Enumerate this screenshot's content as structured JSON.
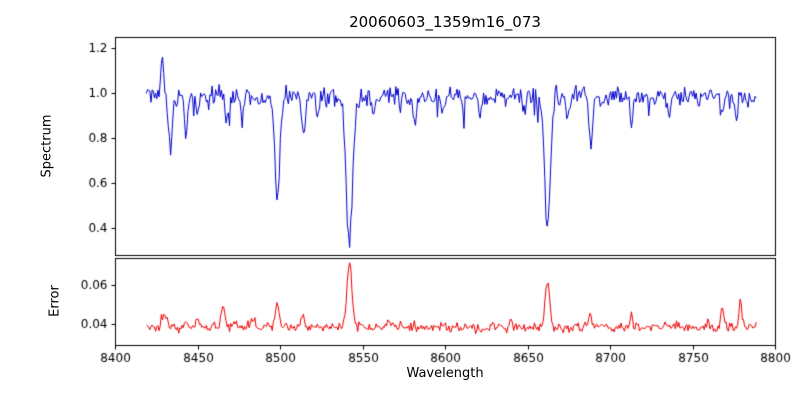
{
  "seed": 73,
  "figure": {
    "title": "20060603_1359m16_073",
    "xlabel": "Wavelength",
    "background": "#ffffff",
    "frame_color": "#000000",
    "text_color": "#000000",
    "grid": false,
    "legend": "none"
  },
  "chart_data": [
    {
      "id": "spectrum",
      "type": "line",
      "title": "20060603_1359m16_073",
      "ylabel": "Spectrum",
      "color": "#0000cd",
      "xlim": [
        8400,
        8800
      ],
      "ylim": [
        0.28,
        1.25
      ],
      "yticks": [
        {
          "v": 0.4,
          "label": "0.4"
        },
        {
          "v": 0.6,
          "label": "0.6"
        },
        {
          "v": 0.8,
          "label": "0.8"
        },
        {
          "v": 1.0,
          "label": "1.0"
        },
        {
          "v": 1.2,
          "label": "1.2"
        }
      ],
      "xticks": [
        {
          "v": 8400,
          "label": "8400"
        },
        {
          "v": 8450,
          "label": "8450"
        },
        {
          "v": 8500,
          "label": "8500"
        },
        {
          "v": 8550,
          "label": "8550"
        },
        {
          "v": 8600,
          "label": "8600"
        },
        {
          "v": 8650,
          "label": "8650"
        },
        {
          "v": 8700,
          "label": "8700"
        },
        {
          "v": 8750,
          "label": "8750"
        },
        {
          "v": 8800,
          "label": "8800"
        }
      ],
      "x_data_range": [
        8419,
        8789
      ],
      "sample_step": 0.7,
      "continuum": 0.985,
      "noise_sigma": 0.023,
      "dip_prob": 0.05,
      "dip_max": 0.09,
      "features": [
        {
          "c": 8428.5,
          "d": -0.19,
          "s": 0.7
        },
        {
          "c": 8433.5,
          "d": 0.24,
          "s": 1.1
        },
        {
          "c": 8443.0,
          "d": 0.17,
          "s": 0.9
        },
        {
          "c": 8450.0,
          "d": 0.08,
          "s": 0.8
        },
        {
          "c": 8468.0,
          "d": 0.13,
          "s": 0.9
        },
        {
          "c": 8477.0,
          "d": 0.09,
          "s": 0.8
        },
        {
          "c": 8498.4,
          "d": 0.46,
          "s": 1.5
        },
        {
          "c": 8514.5,
          "d": 0.19,
          "s": 1.0
        },
        {
          "c": 8523.0,
          "d": 0.09,
          "s": 0.8
        },
        {
          "c": 8542.1,
          "d": 0.67,
          "s": 1.9
        },
        {
          "c": 8556.0,
          "d": 0.07,
          "s": 0.8
        },
        {
          "c": 8582.0,
          "d": 0.1,
          "s": 0.9
        },
        {
          "c": 8598.0,
          "d": 0.07,
          "s": 0.8
        },
        {
          "c": 8611.0,
          "d": 0.07,
          "s": 0.8
        },
        {
          "c": 8621.0,
          "d": 0.09,
          "s": 0.8
        },
        {
          "c": 8648.0,
          "d": 0.07,
          "s": 0.8
        },
        {
          "c": 8662.1,
          "d": 0.59,
          "s": 1.7
        },
        {
          "c": 8674.0,
          "d": 0.09,
          "s": 0.8
        },
        {
          "c": 8688.5,
          "d": 0.23,
          "s": 1.0
        },
        {
          "c": 8713.0,
          "d": 0.11,
          "s": 0.9
        },
        {
          "c": 8736.0,
          "d": 0.09,
          "s": 0.8
        },
        {
          "c": 8768.0,
          "d": 0.09,
          "s": 0.8
        },
        {
          "c": 8776.5,
          "d": 0.11,
          "s": 0.9
        }
      ]
    },
    {
      "id": "error",
      "type": "line",
      "ylabel": "Error",
      "color": "#ee0000",
      "xlim": [
        8400,
        8800
      ],
      "ylim": [
        0.0295,
        0.0735
      ],
      "yticks": [
        {
          "v": 0.04,
          "label": "0.04"
        },
        {
          "v": 0.06,
          "label": "0.06"
        }
      ],
      "baseline": 0.0385,
      "noise_sigma": 0.0012,
      "spike_prob": 0.06,
      "spike_max": 0.003,
      "peaks": [
        {
          "c": 8430.0,
          "h": 0.007,
          "s": 1.5
        },
        {
          "c": 8443.0,
          "h": 0.004,
          "s": 1.0
        },
        {
          "c": 8450.0,
          "h": 0.005,
          "s": 1.0
        },
        {
          "c": 8465.5,
          "h": 0.011,
          "s": 1.1
        },
        {
          "c": 8483.0,
          "h": 0.004,
          "s": 0.9
        },
        {
          "c": 8498.4,
          "h": 0.011,
          "s": 1.3
        },
        {
          "c": 8514.0,
          "h": 0.005,
          "s": 1.0
        },
        {
          "c": 8542.1,
          "h": 0.033,
          "s": 1.5
        },
        {
          "c": 8565.0,
          "h": 0.003,
          "s": 0.9
        },
        {
          "c": 8598.0,
          "h": 0.002,
          "s": 0.8
        },
        {
          "c": 8640.0,
          "h": 0.003,
          "s": 0.8
        },
        {
          "c": 8662.1,
          "h": 0.022,
          "s": 1.4
        },
        {
          "c": 8688.0,
          "h": 0.006,
          "s": 1.0
        },
        {
          "c": 8713.0,
          "h": 0.004,
          "s": 0.9
        },
        {
          "c": 8736.0,
          "h": 0.003,
          "s": 0.8
        },
        {
          "c": 8768.0,
          "h": 0.009,
          "s": 0.9
        },
        {
          "c": 8779.0,
          "h": 0.014,
          "s": 0.9
        }
      ]
    }
  ]
}
